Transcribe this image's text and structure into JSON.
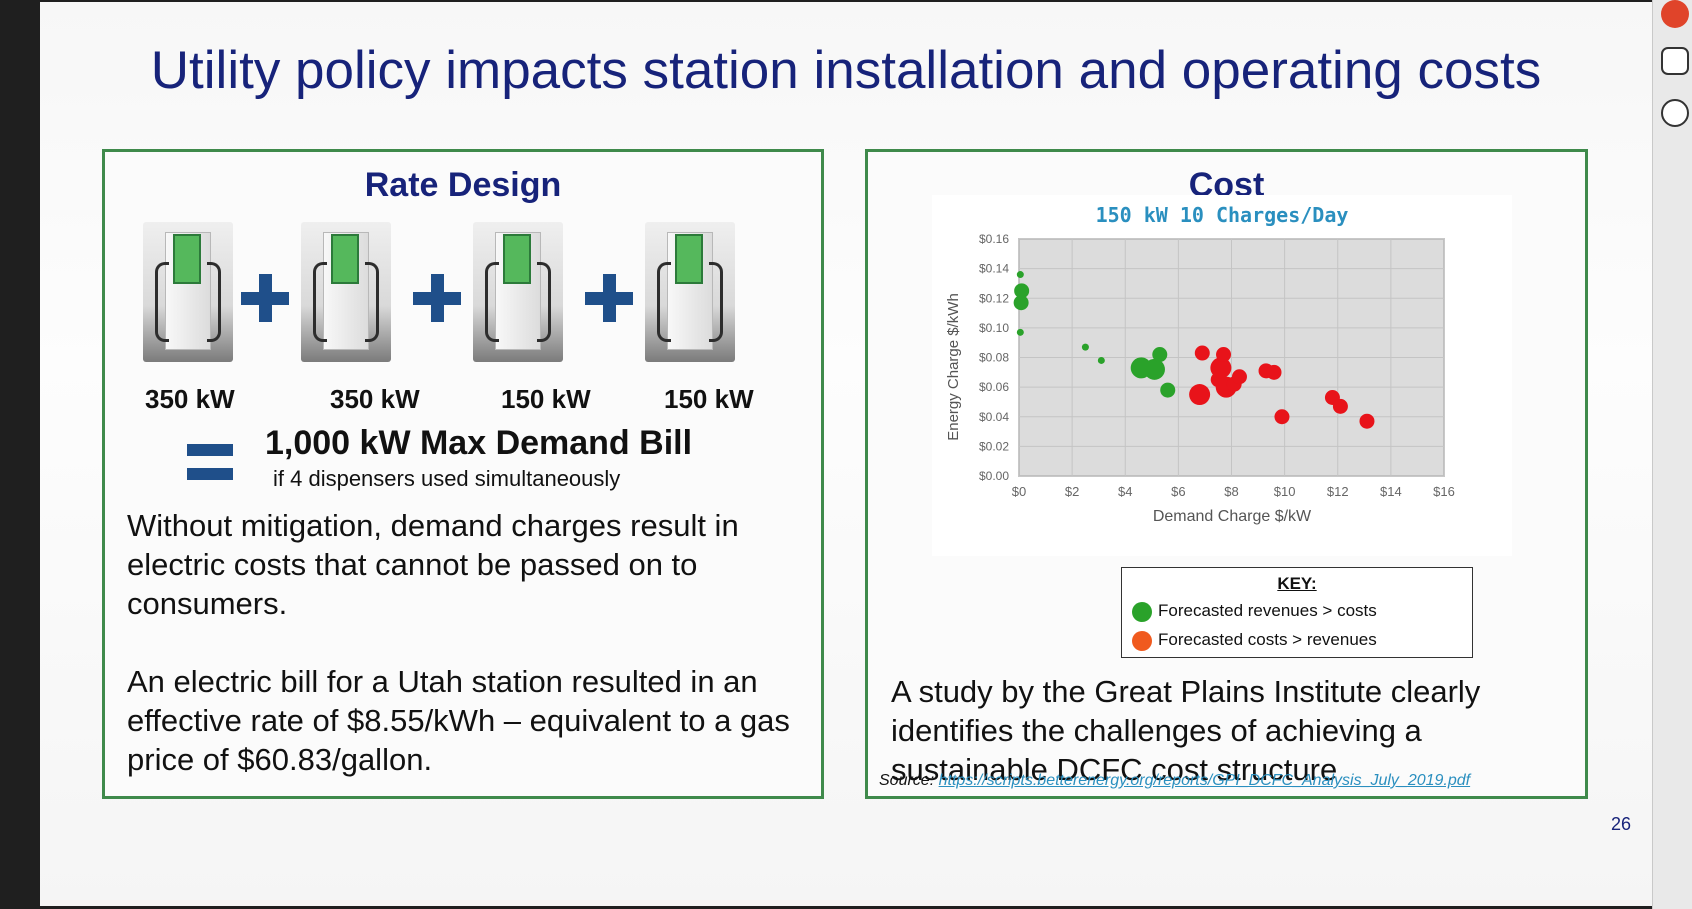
{
  "title": "Utility policy impacts station installation and operating costs",
  "left_panel": {
    "heading": "Rate Design",
    "dispensers": [
      {
        "power": "350 kW"
      },
      {
        "power": "350 kW"
      },
      {
        "power": "150 kW"
      },
      {
        "power": "150 kW"
      }
    ],
    "total": "1,000 kW Max Demand Bill",
    "total_note": "if 4 dispensers used simultaneously",
    "paragraph1": "Without mitigation, demand charges result in electric costs that cannot be passed on to consumers.",
    "paragraph2": "An electric bill for a Utah station resulted in an effective rate of $8.55/kWh – equivalent to a gas price of $60.83/gallon."
  },
  "right_panel": {
    "heading": "Cost",
    "key": {
      "title": "KEY:",
      "items": [
        {
          "label": "Forecasted revenues > costs",
          "color": "#2aa22a"
        },
        {
          "label": "Forecasted costs > revenues",
          "color": "#f05a1e"
        }
      ]
    },
    "study_text": "A study by the Great Plains Institute clearly identifies the challenges of achieving a sustainable DCFC cost structure"
  },
  "chart_data": {
    "type": "scatter",
    "title": "150 kW 10 Charges/Day",
    "xlabel": "Demand Charge $/kW",
    "ylabel": "Energy Charge $/kWh",
    "xlim": [
      0,
      16
    ],
    "ylim": [
      0,
      0.16
    ],
    "x_ticks": [
      "$0",
      "$2",
      "$4",
      "$6",
      "$8",
      "$10",
      "$12",
      "$14",
      "$16"
    ],
    "y_ticks": [
      "$0.00",
      "$0.02",
      "$0.04",
      "$0.06",
      "$0.08",
      "$0.10",
      "$0.12",
      "$0.14",
      "$0.16"
    ],
    "grid": true,
    "series": [
      {
        "color": "#2aa22a",
        "points": [
          {
            "x": 0.05,
            "y": 0.136,
            "size": 1
          },
          {
            "x": 0.1,
            "y": 0.125,
            "size": 2
          },
          {
            "x": 0.08,
            "y": 0.117,
            "size": 2
          },
          {
            "x": 0.05,
            "y": 0.097,
            "size": 1
          },
          {
            "x": 2.5,
            "y": 0.087,
            "size": 1
          },
          {
            "x": 3.1,
            "y": 0.078,
            "size": 1
          },
          {
            "x": 4.6,
            "y": 0.073,
            "size": 3
          },
          {
            "x": 5.1,
            "y": 0.072,
            "size": 3
          },
          {
            "x": 5.3,
            "y": 0.082,
            "size": 2
          },
          {
            "x": 5.6,
            "y": 0.058,
            "size": 2
          }
        ]
      },
      {
        "color": "#e8131a",
        "points": [
          {
            "x": 6.8,
            "y": 0.055,
            "size": 3
          },
          {
            "x": 6.9,
            "y": 0.083,
            "size": 2
          },
          {
            "x": 7.5,
            "y": 0.065,
            "size": 2
          },
          {
            "x": 7.6,
            "y": 0.073,
            "size": 3
          },
          {
            "x": 7.7,
            "y": 0.082,
            "size": 2
          },
          {
            "x": 7.8,
            "y": 0.06,
            "size": 3
          },
          {
            "x": 8.1,
            "y": 0.062,
            "size": 2
          },
          {
            "x": 8.3,
            "y": 0.067,
            "size": 2
          },
          {
            "x": 9.3,
            "y": 0.071,
            "size": 2
          },
          {
            "x": 9.6,
            "y": 0.07,
            "size": 2
          },
          {
            "x": 9.9,
            "y": 0.04,
            "size": 2
          },
          {
            "x": 11.8,
            "y": 0.053,
            "size": 2
          },
          {
            "x": 12.1,
            "y": 0.047,
            "size": 2
          },
          {
            "x": 13.1,
            "y": 0.037,
            "size": 2
          }
        ]
      }
    ]
  },
  "source": {
    "label": "Source:",
    "link": "https://scripts.betterenergy.org/reports/GPI_DCFC_Analysis_July_2019.pdf"
  },
  "page_number": "26"
}
